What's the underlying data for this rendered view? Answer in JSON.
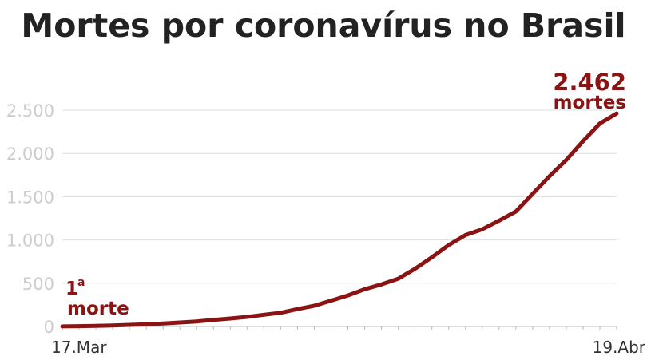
{
  "title": "Mortes por coronavírus no Brasil",
  "chart_data": {
    "type": "line",
    "title": "Mortes por coronavírus no Brasil",
    "xlabel": "",
    "ylabel": "",
    "x_tick_labels": [
      "17.Mar",
      "19.Abr"
    ],
    "x_range": [
      "17.Mar",
      "19.Abr"
    ],
    "y_ticks": [
      0,
      500,
      1000,
      1500,
      2000,
      2500
    ],
    "y_tick_labels": [
      "0",
      "500",
      "1.000",
      "1.500",
      "2.000",
      "2.500"
    ],
    "ylim": [
      0,
      2500
    ],
    "grid": true,
    "line_color": "#8a1414",
    "series": [
      {
        "x": [
          "17.Mar",
          "18.Mar",
          "19.Mar",
          "20.Mar",
          "21.Mar",
          "22.Mar",
          "23.Mar",
          "24.Mar",
          "25.Mar",
          "26.Mar",
          "27.Mar",
          "28.Mar",
          "29.Mar",
          "30.Mar",
          "31.Mar",
          "01.Abr",
          "02.Abr",
          "03.Abr",
          "04.Abr",
          "05.Abr",
          "06.Abr",
          "07.Abr",
          "08.Abr",
          "09.Abr",
          "10.Abr",
          "11.Abr",
          "12.Abr",
          "13.Abr",
          "14.Abr",
          "15.Abr",
          "16.Abr",
          "17.Abr",
          "18.Abr",
          "19.Abr"
        ],
        "values": [
          1,
          4,
          7,
          11,
          18,
          25,
          34,
          46,
          57,
          77,
          92,
          111,
          136,
          159,
          201,
          240,
          299,
          359,
          431,
          486,
          553,
          667,
          800,
          941,
          1056,
          1124,
          1223,
          1328,
          1532,
          1736,
          1924,
          2141,
          2347,
          2462
        ]
      }
    ],
    "annotations": {
      "start_number": "1",
      "start_superscript": "a",
      "start_text": "morte",
      "end_number": "2.462",
      "end_text": "mortes"
    }
  }
}
